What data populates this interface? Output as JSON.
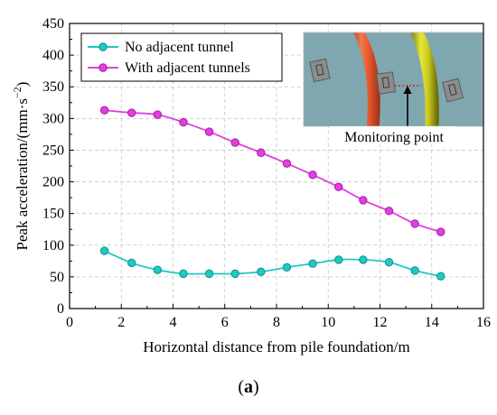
{
  "chart_data": {
    "type": "line",
    "xlabel": "Horizontal distance from pile foundation/m",
    "ylabel": "Peak acceleration/(mm·s",
    "ylabel_sup": "−2",
    "ylabel_close": ")",
    "xlim": [
      0,
      16
    ],
    "ylim": [
      0,
      450
    ],
    "xticks": [
      0,
      2,
      4,
      6,
      8,
      10,
      12,
      14,
      16
    ],
    "yticks": [
      0,
      50,
      100,
      150,
      200,
      250,
      300,
      350,
      400,
      450
    ],
    "grid": true,
    "legend_position": "top-left",
    "series": [
      {
        "name": "No adjacent tunnel",
        "color": "#1fc9c4",
        "x": [
          1.35,
          2.4,
          3.4,
          4.4,
          5.4,
          6.4,
          7.4,
          8.4,
          9.4,
          10.4,
          11.35,
          12.35,
          13.35,
          14.35
        ],
        "y": [
          91,
          72,
          61,
          55,
          55,
          55,
          58,
          65,
          71,
          77,
          77,
          73,
          60,
          51
        ]
      },
      {
        "name": "With adjacent tunnels",
        "color": "#e23ee0",
        "x": [
          1.35,
          2.4,
          3.4,
          4.4,
          5.4,
          6.4,
          7.4,
          8.4,
          9.4,
          10.4,
          11.35,
          12.35,
          13.35,
          14.35
        ],
        "y": [
          313,
          309,
          306,
          294,
          279,
          262,
          246,
          229,
          211,
          192,
          171,
          154,
          134,
          121
        ]
      }
    ],
    "inset": {
      "annotation": "Monitoring point",
      "background": "#7fa7b0"
    }
  },
  "caption": {
    "open": "(",
    "letter": "a",
    "close": ")"
  }
}
